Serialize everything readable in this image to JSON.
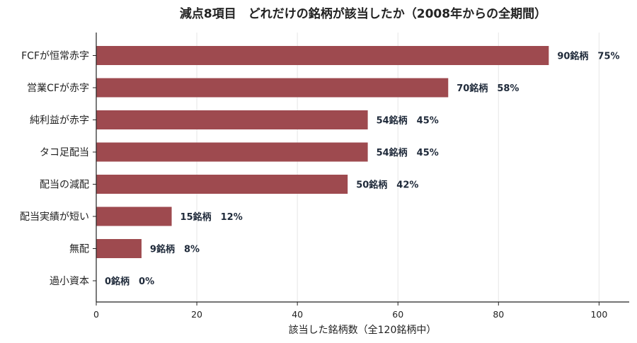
{
  "chart_data": {
    "type": "bar",
    "orientation": "horizontal",
    "title": "減点8項目　どれだけの銘柄が該当したか（2008年からの全期間）",
    "xlabel": "該当した銘柄数（全120銘柄中）",
    "ylabel": "",
    "xlim": [
      0,
      106
    ],
    "xticks": [
      0,
      20,
      40,
      60,
      80,
      100
    ],
    "grid": "vertical",
    "bar_color": "#9e4a4f",
    "categories": [
      "FCFが恒常赤字",
      "営業CFが赤字",
      "純利益が赤字",
      "タコ足配当",
      "配当の減配",
      "配当実績が短い",
      "無配",
      "過小資本"
    ],
    "values": [
      90,
      70,
      54,
      54,
      50,
      15,
      9,
      0
    ],
    "value_labels": [
      "90銘柄　75%",
      "70銘柄　58%",
      "54銘柄　45%",
      "54銘柄　45%",
      "50銘柄　42%",
      "15銘柄　12%",
      "9銘柄　8%",
      "0銘柄　0%"
    ]
  }
}
